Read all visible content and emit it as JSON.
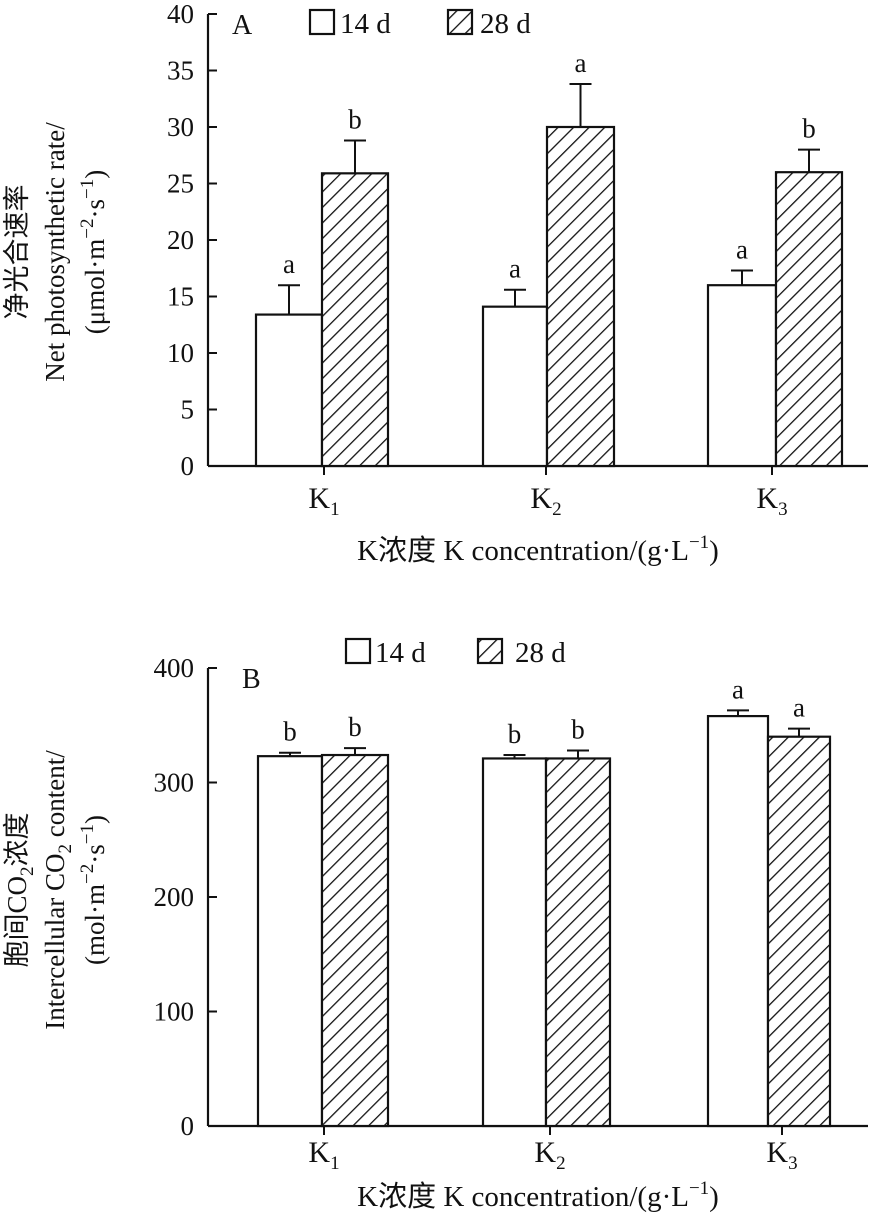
{
  "chart_data": [
    {
      "type": "bar",
      "panel_label": "A",
      "categories": [
        {
          "main": "K",
          "sub": "1"
        },
        {
          "main": "K",
          "sub": "2"
        },
        {
          "main": "K",
          "sub": "3"
        }
      ],
      "series": [
        {
          "name": "14 d",
          "fill": "open",
          "values": [
            13.4,
            14.1,
            16.0
          ],
          "errors": [
            2.6,
            1.5,
            1.3
          ],
          "letters": [
            "a",
            "a",
            "a"
          ]
        },
        {
          "name": "28 d",
          "fill": "hatched",
          "values": [
            25.9,
            30.0,
            26.0
          ],
          "errors": [
            2.9,
            3.8,
            2.0
          ],
          "letters": [
            "b",
            "a",
            "b"
          ]
        }
      ],
      "ylim": [
        0,
        40
      ],
      "yticks": [
        0,
        5,
        10,
        15,
        20,
        25,
        30,
        35,
        40
      ],
      "ylabel_lines": [
        {
          "text": "净光合速率"
        },
        {
          "text": "Net  photosynthetic rate/"
        },
        {
          "text": "(μmol·m",
          "sup1": "−2",
          "mid": "·s",
          "sup2": "−1",
          "end": ")"
        }
      ],
      "xlabel": {
        "text": "K浓度 K concentration/(g·L",
        "sup": "−1",
        "end": ")"
      },
      "legend_position": "top"
    },
    {
      "type": "bar",
      "panel_label": "B",
      "categories": [
        {
          "main": "K",
          "sub": "1"
        },
        {
          "main": "K",
          "sub": "2"
        },
        {
          "main": "K",
          "sub": "3"
        }
      ],
      "series": [
        {
          "name": "14 d",
          "fill": "open",
          "values": [
            323,
            321,
            358
          ],
          "errors": [
            3,
            3,
            5
          ],
          "letters": [
            "b",
            "b",
            "a"
          ]
        },
        {
          "name": "28 d",
          "fill": "hatched",
          "values": [
            324,
            321,
            340
          ],
          "errors": [
            6,
            7,
            7
          ],
          "letters": [
            "b",
            "b",
            "a"
          ]
        }
      ],
      "ylim": [
        0,
        400
      ],
      "yticks": [
        0,
        100,
        200,
        300,
        400
      ],
      "ylabel_lines": [
        {
          "text": "胞间CO",
          "sub": "2",
          "end": "浓度"
        },
        {
          "text": "Intercellular CO",
          "sub": "2",
          "end": " content/"
        },
        {
          "text": "(mol·m",
          "sup1": "−2",
          "mid": "·s",
          "sup2": "−1",
          "end": ")"
        }
      ],
      "xlabel": {
        "text": "K浓度 K concentration/(g·L",
        "sup": "−1",
        "end": ")"
      },
      "legend_position": "top"
    }
  ]
}
